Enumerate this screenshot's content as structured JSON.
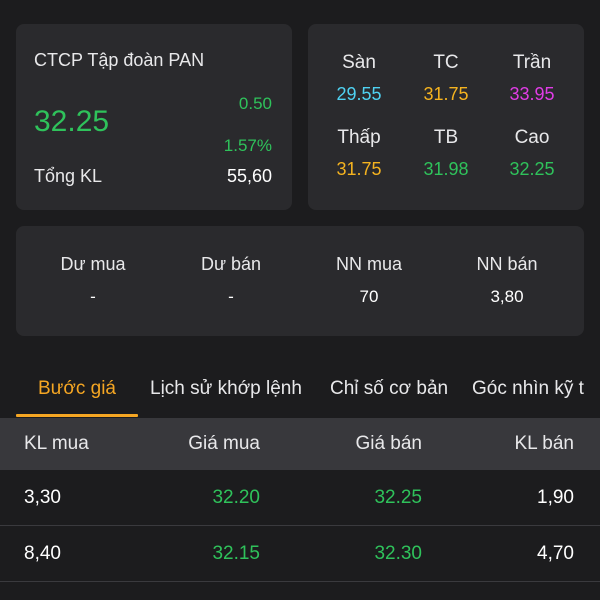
{
  "summary": {
    "company": "CTCP Tập đoàn PAN",
    "price": "32.25",
    "change": "0.50",
    "change_pct": "1.57%",
    "volume_label": "Tổng KL",
    "volume_value": "55,60"
  },
  "reference": {
    "floor": {
      "label": "Sàn",
      "value": "29.55",
      "color": "#4fd2f2"
    },
    "ref": {
      "label": "TC",
      "value": "31.75",
      "color": "#f5b31f"
    },
    "ceiling": {
      "label": "Trần",
      "value": "33.95",
      "color": "#e03ce6"
    },
    "low": {
      "label": "Thấp",
      "value": "31.75",
      "color": "#f5b31f"
    },
    "avg": {
      "label": "TB",
      "value": "31.98",
      "color": "#2fc25b"
    },
    "high": {
      "label": "Cao",
      "value": "32.25",
      "color": "#2fc25b"
    }
  },
  "flow": {
    "buy_surplus": {
      "label": "Dư mua",
      "value": "-"
    },
    "sell_surplus": {
      "label": "Dư bán",
      "value": "-"
    },
    "foreign_buy": {
      "label": "NN mua",
      "value": "70"
    },
    "foreign_sell": {
      "label": "NN bán",
      "value": "3,80"
    }
  },
  "tabs": [
    {
      "label": "Bước giá",
      "active": true
    },
    {
      "label": "Lịch sử khớp lệnh",
      "active": false
    },
    {
      "label": "Chỉ số cơ bản",
      "active": false
    },
    {
      "label": "Góc nhìn kỹ t",
      "active": false
    }
  ],
  "order_book": {
    "headers": [
      "KL mua",
      "Giá mua",
      "Giá bán",
      "KL bán"
    ],
    "rows": [
      [
        "3,30",
        "32.20",
        "32.25",
        "1,90"
      ],
      [
        "8,40",
        "32.15",
        "32.30",
        "4,70"
      ]
    ]
  },
  "colors": {
    "up": "#2fc25b",
    "accent": "#f5a623",
    "background": "#1c1c1e",
    "card": "#2a2a2d"
  }
}
